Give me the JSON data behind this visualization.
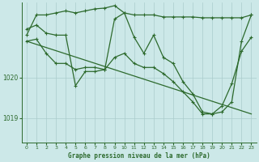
{
  "bg_color": "#cce8e8",
  "grid_color": "#aacccc",
  "line_color": "#2d6a2d",
  "marker_color": "#2d6a2d",
  "title": "Graphe pression niveau de la mer (hPa)",
  "xlim": [
    -0.5,
    23.5
  ],
  "ylim": [
    1018.4,
    1021.85
  ],
  "yticks": [
    1019,
    1020
  ],
  "xticks": [
    0,
    1,
    2,
    3,
    4,
    5,
    6,
    7,
    8,
    9,
    10,
    11,
    12,
    13,
    14,
    15,
    16,
    17,
    18,
    19,
    20,
    21,
    22,
    23
  ],
  "line1_x": [
    0,
    1,
    2,
    3,
    4,
    5,
    6,
    7,
    8,
    9,
    10,
    11,
    12,
    13,
    14,
    15,
    16,
    17,
    18,
    19,
    20,
    21,
    22,
    23
  ],
  "line1_y": [
    1021.05,
    1021.55,
    1021.55,
    1021.6,
    1021.65,
    1021.6,
    1021.65,
    1021.7,
    1021.72,
    1021.78,
    1021.6,
    1021.55,
    1021.55,
    1021.55,
    1021.5,
    1021.5,
    1021.5,
    1021.5,
    1021.48,
    1021.48,
    1021.48,
    1021.48,
    1021.48,
    1021.55
  ],
  "line2_x": [
    0,
    1,
    2,
    3,
    4,
    5,
    6,
    7,
    8,
    9,
    10,
    11,
    12,
    13,
    14,
    15,
    16,
    17,
    18,
    19,
    20,
    21,
    22,
    23
  ],
  "line2_y": [
    1021.2,
    1021.3,
    1021.1,
    1021.05,
    1021.05,
    1019.8,
    1020.15,
    1020.15,
    1020.2,
    1021.45,
    1021.6,
    1021.0,
    1020.6,
    1021.05,
    1020.5,
    1020.35,
    1019.9,
    1019.6,
    1019.15,
    1019.1,
    1019.15,
    1019.4,
    1020.9,
    1021.55
  ],
  "line3_x": [
    0,
    1,
    2,
    3,
    4,
    5,
    6,
    7,
    8,
    9,
    10,
    11,
    12,
    13,
    14,
    15,
    16,
    17,
    18,
    19,
    20,
    21,
    22,
    23
  ],
  "line3_y": [
    1020.9,
    1020.95,
    1020.6,
    1020.35,
    1020.35,
    1020.2,
    1020.25,
    1020.25,
    1020.2,
    1020.5,
    1020.6,
    1020.35,
    1020.25,
    1020.25,
    1020.1,
    1019.9,
    1019.65,
    1019.4,
    1019.1,
    1019.1,
    1019.3,
    1019.85,
    1020.65,
    1021.0
  ],
  "line4_x": [
    0,
    23
  ],
  "line4_y": [
    1020.9,
    1019.1
  ],
  "figsize": [
    3.2,
    2.0
  ],
  "dpi": 100
}
